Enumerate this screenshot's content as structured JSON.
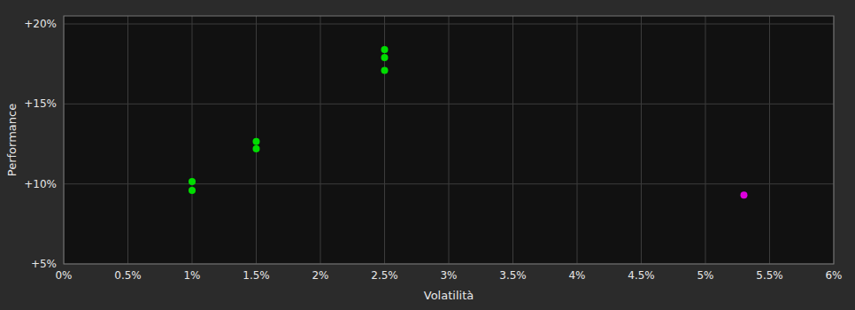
{
  "chart_data": {
    "type": "scatter",
    "xlabel": "Volatilità",
    "ylabel": "Performance",
    "xlim": [
      0.0,
      0.06
    ],
    "ylim": [
      0.05,
      0.205
    ],
    "xticks": [
      {
        "value": 0.0,
        "label": "0%"
      },
      {
        "value": 0.005,
        "label": "0.5%"
      },
      {
        "value": 0.01,
        "label": "1%"
      },
      {
        "value": 0.015,
        "label": "1.5%"
      },
      {
        "value": 0.02,
        "label": "2%"
      },
      {
        "value": 0.025,
        "label": "2.5%"
      },
      {
        "value": 0.03,
        "label": "3%"
      },
      {
        "value": 0.035,
        "label": "3.5%"
      },
      {
        "value": 0.04,
        "label": "4%"
      },
      {
        "value": 0.045,
        "label": "4.5%"
      },
      {
        "value": 0.05,
        "label": "5%"
      },
      {
        "value": 0.055,
        "label": "5.5%"
      },
      {
        "value": 0.06,
        "label": "6%"
      }
    ],
    "yticks": [
      {
        "value": 0.05,
        "label": "+5%"
      },
      {
        "value": 0.1,
        "label": "+10%"
      },
      {
        "value": 0.15,
        "label": "+15%"
      },
      {
        "value": 0.2,
        "label": "+20%"
      }
    ],
    "grid": true,
    "series": [
      {
        "color": "#00dd00",
        "x": [
          0.01,
          0.01,
          0.015,
          0.015,
          0.025,
          0.025,
          0.025
        ],
        "values": [
          0.1015,
          0.096,
          0.1265,
          0.122,
          0.184,
          0.179,
          0.171
        ]
      },
      {
        "color": "#dd00dd",
        "x": [
          0.053
        ],
        "values": [
          0.093
        ]
      }
    ]
  }
}
